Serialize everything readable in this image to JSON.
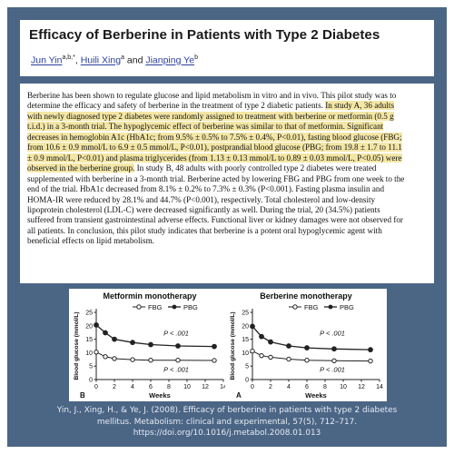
{
  "title": "Efficacy of Berberine in Patients with Type 2 Diabetes",
  "authors": {
    "a1_name": "Jun Yin",
    "a1_sup": "a,b,*",
    "sep": ", ",
    "a2_name": "Huili Xing",
    "a2_sup": "a",
    "and": " and ",
    "a3_name": "Jianping Ye",
    "a3_sup": "b"
  },
  "abstract": {
    "s1": "Berberine has been shown to regulate glucose and lipid metabolism in vitro and in vivo. This pilot study was to determine the efficacy and safety of berberine in the treatment of type 2 diabetic patients. ",
    "s2": "In study A, 36 adults with newly diagnosed type 2 diabetes were randomly assigned to treatment with berberine or metformin (0.5 g t.i.d.) in a 3-month trial. The hypoglycemic effect of berberine was similar to that of metformin. Significant decreases in hemoglobin A1c (HbA1c; from 9.5% ± 0.5% to 7.5% ± 0.4%, P<0.01), fasting blood glucose (FBG; from 10.6 ± 0.9 mmol/L to 6.9 ± 0.5 mmol/L, P<0.01), postprandial blood glucose (PBG; from 19.8 ± 1.7 to 11.1 ± 0.9 mmol/L, P<0.01) and plasma triglycerides (from 1.13 ± 0.13 mmol/L to 0.89 ± 0.03 mmol/L, P<0.05) were observed in the berberine group.",
    "s3": " In study B, 48 adults with poorly controlled type 2 diabetes were treated supplemented with berberine in a 3-month trial. Berberine acted by lowering FBG and PBG from one week to the end of the trial. HbA1c decreased from 8.1% ± 0.2% to 7.3% ± 0.3% (P<0.001). Fasting plasma insulin and HOMA-IR were reduced by 28.1% and 44.7% (P<0.001), respectively. Total cholesterol and low-density lipoprotein cholesterol (LDL-C) were decreased significantly as well. During the trial, 20 (34.5%) patients suffered from transient gastrointestinal adverse effects. Functional liver or kidney damages were not observed for all patients. In conclusion, this pilot study indicates that berberine is a potent oral hypoglycemic agent with beneficial effects on lipid metabolism."
  },
  "charts": [
    {
      "title": "Metformin monotherapy",
      "panel_label": "B",
      "xlabel": "Weeks",
      "ylabel": "Blood glucose (mmol/L)",
      "legend": [
        "FBG",
        "PBG"
      ],
      "annotations": [
        "P < .001",
        "P < .001"
      ],
      "xticks": [
        "0",
        "2",
        "4",
        "6",
        "8",
        "10",
        "12",
        "14"
      ],
      "yticks": [
        "0",
        "5",
        "10",
        "15",
        "20",
        "25"
      ]
    },
    {
      "title": "Berberine monotherapy",
      "panel_label": "A",
      "xlabel": "Weeks",
      "ylabel": "Blood glucose (mmol/L)",
      "legend": [
        "FBG",
        "PBG"
      ],
      "annotations": [
        "P < .001",
        "P < .001"
      ],
      "xticks": [
        "0",
        "2",
        "4",
        "6",
        "8",
        "10",
        "12",
        "14"
      ],
      "yticks": [
        "0",
        "5",
        "10",
        "15",
        "20",
        "25"
      ]
    }
  ],
  "chart_data": [
    {
      "type": "line",
      "title": "Metformin monotherapy",
      "xlabel": "Weeks",
      "ylabel": "Blood glucose (mmol/L)",
      "xlim": [
        0,
        14
      ],
      "ylim": [
        0,
        25
      ],
      "legend_position": "top",
      "series": [
        {
          "name": "FBG",
          "x": [
            0,
            1,
            2,
            4,
            6,
            9,
            13
          ],
          "y": [
            10.2,
            8.5,
            7.8,
            7.4,
            7.2,
            7.2,
            7.1
          ]
        },
        {
          "name": "PBG",
          "x": [
            0,
            1,
            2,
            4,
            6,
            9,
            13
          ],
          "y": [
            20.3,
            17.4,
            15.0,
            13.8,
            13.0,
            12.5,
            12.3
          ]
        }
      ]
    },
    {
      "type": "line",
      "title": "Berberine monotherapy",
      "xlabel": "Weeks",
      "ylabel": "Blood glucose (mmol/L)",
      "xlim": [
        0,
        14
      ],
      "ylim": [
        0,
        25
      ],
      "legend_position": "top",
      "series": [
        {
          "name": "FBG",
          "x": [
            0,
            1,
            2,
            4,
            6,
            9,
            13
          ],
          "y": [
            10.6,
            8.9,
            8.3,
            7.6,
            7.2,
            7.0,
            6.9
          ]
        },
        {
          "name": "PBG",
          "x": [
            0,
            1,
            2,
            4,
            6,
            9,
            13
          ],
          "y": [
            19.8,
            16.0,
            14.0,
            12.5,
            11.8,
            11.4,
            11.1
          ]
        }
      ]
    }
  ],
  "citation": {
    "line1": "Yin, J., Xing, H., & Ye, J. (2008). Efficacy of berberine in patients with type 2 diabetes",
    "line2": "mellitus. Metabolism: clinical and experimental, 57(5), 712–717.",
    "line3": "https://doi.org/10.1016/j.metabol.2008.01.013"
  },
  "colors": {
    "frame": "#4b6585",
    "highlight": "#f4e7a6",
    "author_link": "#2b3f9e"
  }
}
